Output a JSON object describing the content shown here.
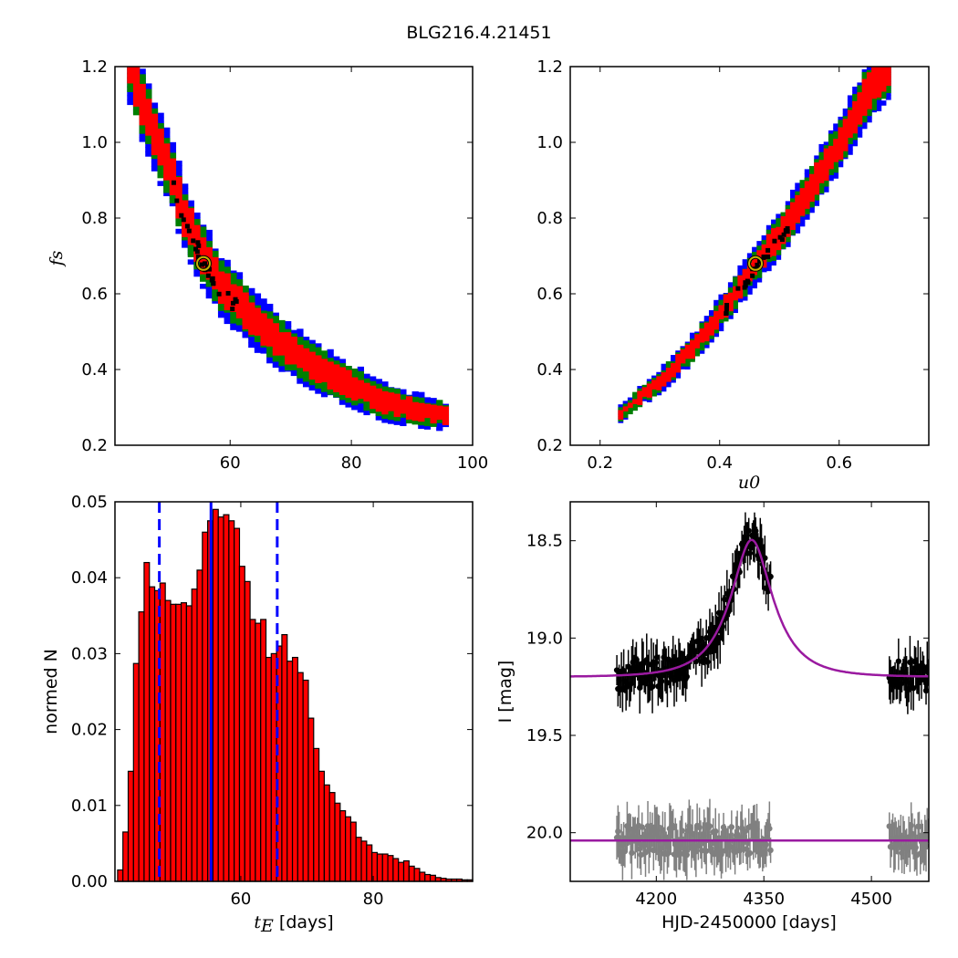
{
  "figure": {
    "title": "BLG216.4.21451",
    "colors": {
      "red": "#ff0000",
      "green": "#007f00",
      "blue": "#0000ff",
      "best": "#ffff00",
      "purple": "#9a1aa0",
      "gray": "#808080",
      "black": "#000000"
    }
  },
  "chart_data": [
    {
      "id": "fs_vs_tE",
      "type": "heatmap",
      "title": "",
      "xlabel": "",
      "ylabel": "f_s",
      "xlim": [
        41,
        100
      ],
      "ylim": [
        0.2,
        1.2
      ],
      "xticks": [
        "60",
        "80",
        "100"
      ],
      "yticks": [
        "0.2",
        "0.4",
        "0.6",
        "0.8",
        "1.0",
        "1.2"
      ],
      "grid": false,
      "description_levels": [
        "black",
        "red",
        "green",
        "blue"
      ],
      "ridge": [
        [
          43,
          1.2
        ],
        [
          45,
          1.1
        ],
        [
          48,
          0.98
        ],
        [
          50,
          0.9
        ],
        [
          52,
          0.8
        ],
        [
          55,
          0.7
        ],
        [
          58,
          0.62
        ],
        [
          62,
          0.55
        ],
        [
          66,
          0.49
        ],
        [
          70,
          0.44
        ],
        [
          75,
          0.39
        ],
        [
          80,
          0.35
        ],
        [
          85,
          0.31
        ],
        [
          90,
          0.29
        ],
        [
          95,
          0.275
        ]
      ],
      "best_fit": [
        55.6,
        0.68
      ]
    },
    {
      "id": "fs_vs_u0",
      "type": "heatmap",
      "title": "",
      "xlabel": "u_0",
      "ylabel": "",
      "xlim": [
        0.15,
        0.75
      ],
      "ylim": [
        0.2,
        1.2
      ],
      "xticks": [
        "0.2",
        "0.4",
        "0.6"
      ],
      "yticks": [
        "0.2",
        "0.4",
        "0.6",
        "0.8",
        "1.0",
        "1.2"
      ],
      "grid": false,
      "ridge": [
        [
          0.23,
          0.28
        ],
        [
          0.3,
          0.37
        ],
        [
          0.35,
          0.45
        ],
        [
          0.4,
          0.55
        ],
        [
          0.46,
          0.68
        ],
        [
          0.5,
          0.76
        ],
        [
          0.55,
          0.88
        ],
        [
          0.6,
          1.0
        ],
        [
          0.64,
          1.12
        ],
        [
          0.68,
          1.2
        ]
      ],
      "best_fit": [
        0.46,
        0.68
      ]
    },
    {
      "id": "tE_hist",
      "type": "bar",
      "title": "",
      "xlabel": "t_E [days]",
      "ylabel": "normed N",
      "xlim": [
        41,
        95
      ],
      "ylim": [
        0,
        0.05
      ],
      "xticks": [
        "60",
        "80"
      ],
      "yticks": [
        "0.00",
        "0.01",
        "0.02",
        "0.03",
        "0.04",
        "0.05"
      ],
      "bin_width": 0.8,
      "bin_start": 41.4,
      "values": [
        0.0015,
        0.0065,
        0.0145,
        0.0287,
        0.0355,
        0.042,
        0.0388,
        0.0383,
        0.0393,
        0.037,
        0.0365,
        0.0365,
        0.0367,
        0.0363,
        0.0385,
        0.041,
        0.046,
        0.0475,
        0.049,
        0.048,
        0.0483,
        0.0475,
        0.0465,
        0.0415,
        0.0395,
        0.0345,
        0.034,
        0.0345,
        0.0295,
        0.03,
        0.031,
        0.0325,
        0.029,
        0.0295,
        0.0275,
        0.0265,
        0.0215,
        0.0175,
        0.0145,
        0.0127,
        0.0117,
        0.0103,
        0.0093,
        0.0085,
        0.0078,
        0.0058,
        0.0053,
        0.0048,
        0.0038,
        0.0036,
        0.0036,
        0.0034,
        0.003,
        0.0025,
        0.0027,
        0.002,
        0.0017,
        0.0012,
        0.0009,
        0.0008,
        0.0005,
        0.0004,
        0.0003,
        0.0003,
        0.0003,
        0.0002,
        0.0002
      ],
      "median": 55.5,
      "lower": 47.7,
      "upper": 65.5
    },
    {
      "id": "lightcurve",
      "type": "scatter",
      "title": "",
      "xlabel": "HJD-2450000 [days]",
      "ylabel": "I [mag]",
      "xlim": [
        4080,
        4580
      ],
      "ylim": [
        20.25,
        18.3
      ],
      "xticks": [
        "4200",
        "4350",
        "4500"
      ],
      "yticks": [
        "18.5",
        "19.0",
        "19.5",
        "20.0"
      ],
      "model": {
        "t0": 4333,
        "tE": 55.6,
        "u0": 0.46,
        "fs": 0.68,
        "base": 19.2,
        "offset_base": 20.04
      },
      "series": [
        {
          "name": "",
          "color": "black",
          "t_ranges": [
            [
              4145,
              4360
            ],
            [
              4525,
              4580
            ]
          ],
          "baseline": 19.2
        },
        {
          "name": "",
          "color": "gray",
          "t_ranges": [
            [
              4145,
              4360
            ],
            [
              4525,
              4580
            ]
          ],
          "baseline": 20.04
        }
      ]
    }
  ]
}
